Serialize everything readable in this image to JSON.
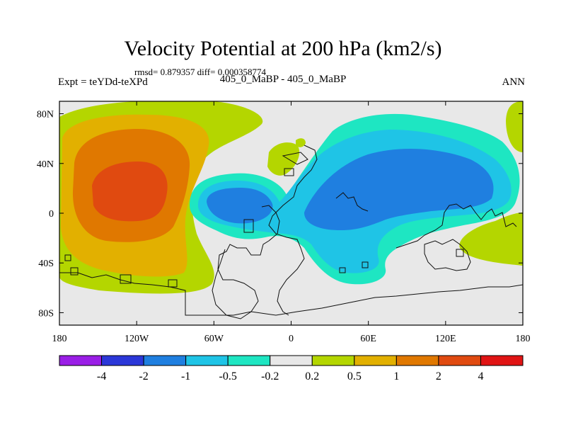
{
  "chart": {
    "title": "Velocity Potential at 200 hPa (km2/s)",
    "stats": "rmsd= 0.879357 diff= 0.000358774",
    "left_label": "Expt = teYDd-teXPd",
    "center_label": "405_0_MaBP - 405_0_MaBP",
    "right_label": "ANN"
  },
  "chart_data": {
    "type": "contour-map",
    "title": "Velocity Potential at 200 hPa (km2/s)",
    "x_ticks": [
      "180",
      "120W",
      "60W",
      "0",
      "60E",
      "120E",
      "180"
    ],
    "x_tick_values": [
      -180,
      -120,
      -60,
      0,
      60,
      120,
      180
    ],
    "y_ticks": [
      "80N",
      "40N",
      "0",
      "40S",
      "80S"
    ],
    "y_tick_values": [
      80,
      40,
      0,
      -40,
      -80
    ],
    "xlim": [
      -180,
      180
    ],
    "ylim": [
      -90,
      90
    ],
    "contour_levels": [
      -4,
      -2,
      -1,
      -0.5,
      -0.2,
      0.2,
      0.5,
      1,
      2,
      4
    ],
    "colorbar_labels": [
      "-4",
      "-2",
      "-1",
      "-0.5",
      "-0.2",
      "0.2",
      "0.5",
      "1",
      "2",
      "4"
    ],
    "colorbar_colors": [
      "#9a1ee6",
      "#2b37d8",
      "#1f7fe0",
      "#1fc4e6",
      "#1ee6c2",
      "#e8e8e8",
      "#b4d600",
      "#e2b000",
      "#e07800",
      "#e04a10",
      "#e01414"
    ],
    "regions": [
      {
        "name": "positive-0.2",
        "fill_level": "0.2 to 0.5",
        "description": "broad positive field over the eastern Pacific"
      },
      {
        "name": "positive-0.5",
        "fill_level": "0.5 to 1"
      },
      {
        "name": "positive-1",
        "fill_level": "1 to 2"
      },
      {
        "name": "positive-2",
        "fill_level": "2 to 4",
        "center": [
          -115,
          15
        ]
      },
      {
        "name": "negative-0.2",
        "fill_level": "-0.5 to -0.2",
        "description": "negative field over Atlantic/Africa/Asia"
      },
      {
        "name": "negative-0.5",
        "fill_level": "-1 to -0.5"
      },
      {
        "name": "negative-1",
        "fill_level": "-2 to -1",
        "centers": [
          [
            -40,
            5
          ],
          [
            70,
            10
          ]
        ]
      }
    ]
  }
}
